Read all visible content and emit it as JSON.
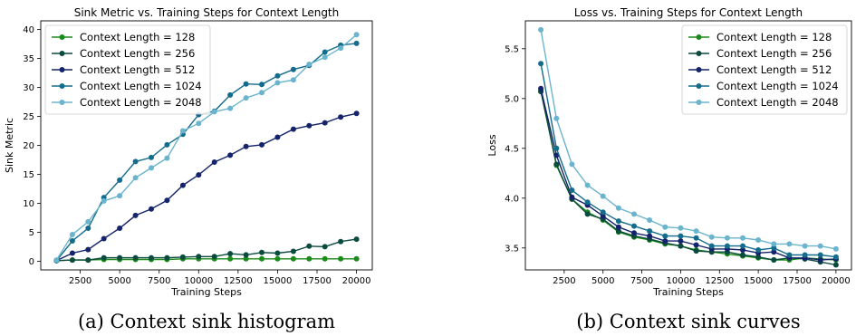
{
  "chart_data": [
    {
      "type": "line",
      "title": "Sink Metric vs. Training Steps for Context Length",
      "xlabel": "Training Steps",
      "ylabel": "Sink Metric",
      "caption": "(a) Context sink histogram",
      "xlim": [
        0,
        21000
      ],
      "ylim": [
        -1.5,
        41.5
      ],
      "x_ticks": [
        2500,
        5000,
        7500,
        10000,
        12500,
        15000,
        17500,
        20000
      ],
      "x_tick_labels": [
        "2500",
        "5000",
        "7500",
        "10000",
        "12500",
        "15000",
        "17500",
        "20000"
      ],
      "y_ticks": [
        0,
        5,
        10,
        15,
        20,
        25,
        30,
        35,
        40
      ],
      "y_tick_labels": [
        "0",
        "5",
        "10",
        "15",
        "20",
        "25",
        "30",
        "35",
        "40"
      ],
      "grid": false,
      "legend_position": "top-left",
      "x": [
        1000,
        2000,
        3000,
        4000,
        5000,
        6000,
        7000,
        8000,
        9000,
        10000,
        11000,
        12000,
        13000,
        14000,
        15000,
        16000,
        17000,
        18000,
        19000,
        20000
      ],
      "series": [
        {
          "name": "Context Length = 128",
          "color": "#1a8a1a",
          "values": [
            0.1,
            0.2,
            0.2,
            0.3,
            0.3,
            0.3,
            0.3,
            0.3,
            0.4,
            0.4,
            0.4,
            0.4,
            0.4,
            0.4,
            0.4,
            0.4,
            0.4,
            0.4,
            0.4,
            0.4
          ]
        },
        {
          "name": "Context Length = 256",
          "color": "#0b4a3e",
          "values": [
            0.1,
            0.2,
            0.2,
            0.6,
            0.6,
            0.6,
            0.6,
            0.6,
            0.7,
            0.8,
            0.8,
            1.3,
            1.1,
            1.5,
            1.4,
            1.7,
            2.6,
            2.5,
            3.4,
            3.8
          ]
        },
        {
          "name": "Context Length = 512",
          "color": "#14236b",
          "values": [
            0.1,
            1.4,
            2.0,
            3.9,
            5.7,
            7.9,
            9.0,
            10.5,
            13.1,
            14.9,
            17.1,
            18.3,
            19.8,
            20.1,
            21.4,
            22.8,
            23.4,
            23.9,
            24.9,
            25.5
          ]
        },
        {
          "name": "Context Length = 1024",
          "color": "#136c8c",
          "values": [
            0.1,
            3.5,
            5.7,
            11.0,
            14.0,
            17.2,
            17.9,
            20.1,
            21.9,
            25.3,
            25.9,
            28.7,
            30.6,
            30.5,
            32.0,
            33.1,
            33.8,
            36.1,
            37.3,
            37.6
          ]
        },
        {
          "name": "Context Length = 2048",
          "color": "#6ab4cd",
          "values": [
            0.2,
            4.6,
            6.8,
            10.4,
            11.3,
            14.4,
            16.1,
            17.8,
            22.5,
            23.8,
            25.8,
            26.4,
            28.2,
            29.1,
            30.8,
            31.3,
            34.0,
            35.2,
            36.8,
            39.1
          ]
        }
      ]
    },
    {
      "type": "line",
      "title": "Loss vs. Training Steps for Context Length",
      "xlabel": "Training Steps",
      "ylabel": "Loss",
      "caption": "(b) Context sink curves",
      "xlim": [
        0,
        21000
      ],
      "ylim": [
        3.28,
        5.78
      ],
      "x_ticks": [
        2500,
        5000,
        7500,
        10000,
        12500,
        15000,
        17500,
        20000
      ],
      "x_tick_labels": [
        "2500",
        "5000",
        "7500",
        "10000",
        "12500",
        "15000",
        "17500",
        "20000"
      ],
      "y_ticks": [
        3.5,
        4.0,
        4.5,
        5.0,
        5.5
      ],
      "y_tick_labels": [
        "3.5",
        "4.0",
        "4.5",
        "5.0",
        "5.5"
      ],
      "grid": false,
      "legend_position": "top-right",
      "x": [
        1000,
        2000,
        3000,
        4000,
        5000,
        6000,
        7000,
        8000,
        9000,
        10000,
        11000,
        12000,
        13000,
        14000,
        15000,
        16000,
        17000,
        18000,
        19000,
        20000
      ],
      "series": [
        {
          "name": "Context Length = 128",
          "color": "#1a8a1a",
          "values": [
            5.08,
            4.33,
            3.99,
            3.86,
            3.78,
            3.66,
            3.61,
            3.58,
            3.54,
            3.52,
            3.48,
            3.46,
            3.44,
            3.42,
            3.4,
            3.38,
            3.38,
            3.4,
            3.39,
            3.38
          ]
        },
        {
          "name": "Context Length = 256",
          "color": "#0b4a3e",
          "values": [
            5.07,
            4.34,
            3.99,
            3.84,
            3.79,
            3.67,
            3.62,
            3.59,
            3.55,
            3.52,
            3.47,
            3.46,
            3.46,
            3.43,
            3.41,
            3.38,
            3.4,
            3.39,
            3.36,
            3.33
          ]
        },
        {
          "name": "Context Length = 512",
          "color": "#14236b",
          "values": [
            5.1,
            4.43,
            4.01,
            3.93,
            3.82,
            3.71,
            3.65,
            3.62,
            3.57,
            3.57,
            3.53,
            3.49,
            3.49,
            3.48,
            3.45,
            3.46,
            3.4,
            3.4,
            3.38,
            3.39
          ]
        },
        {
          "name": "Context Length = 1024",
          "color": "#136c8c",
          "values": [
            5.35,
            4.5,
            4.08,
            3.96,
            3.86,
            3.77,
            3.72,
            3.67,
            3.62,
            3.62,
            3.6,
            3.52,
            3.52,
            3.52,
            3.48,
            3.5,
            3.43,
            3.43,
            3.43,
            3.41
          ]
        },
        {
          "name": "Context Length = 2048",
          "color": "#6ab4cd",
          "values": [
            5.69,
            4.8,
            4.34,
            4.13,
            4.02,
            3.9,
            3.84,
            3.78,
            3.71,
            3.7,
            3.67,
            3.61,
            3.6,
            3.6,
            3.58,
            3.54,
            3.54,
            3.52,
            3.52,
            3.49
          ]
        }
      ]
    }
  ]
}
